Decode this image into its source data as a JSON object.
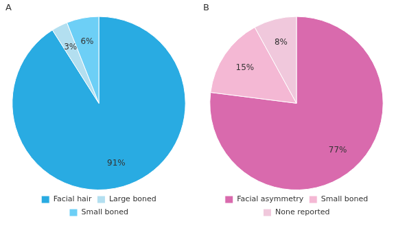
{
  "chart_data": [
    {
      "type": "pie",
      "title": "A",
      "categories": [
        "Facial hair",
        "Large boned",
        "Small boned"
      ],
      "values": [
        91,
        3,
        6
      ],
      "value_labels": [
        "91%",
        "3%",
        "6%"
      ],
      "colors": [
        "#29abe2",
        "#b3dff0",
        "#6dcff6"
      ],
      "data_labels": true,
      "legend": "bottom"
    },
    {
      "type": "pie",
      "title": "B",
      "categories": [
        "Facial asymmetry",
        "Small boned",
        "None reported"
      ],
      "values": [
        77,
        15,
        8
      ],
      "value_labels": [
        "77%",
        "15%",
        "8%"
      ],
      "colors": [
        "#d96aad",
        "#f4b8d4",
        "#f0c8dc"
      ],
      "data_labels": true,
      "legend": "bottom"
    }
  ]
}
